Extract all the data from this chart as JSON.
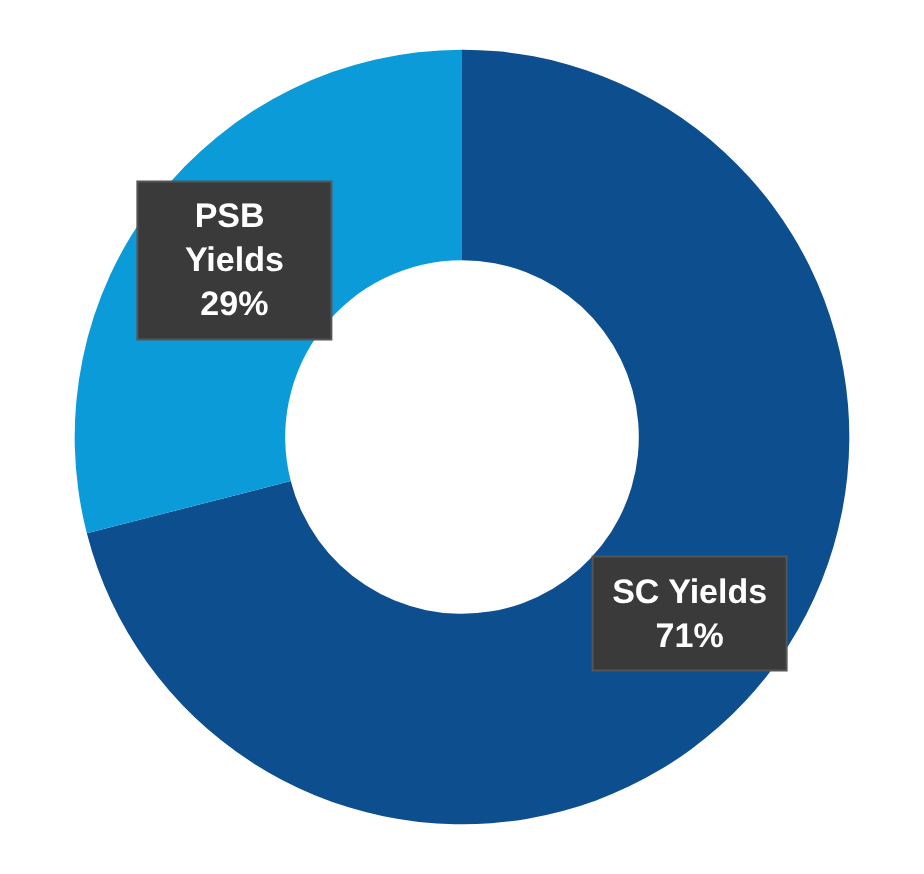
{
  "chart_data": {
    "type": "donut",
    "categories": [
      "SC Yields",
      "PSB Yields"
    ],
    "values": [
      71,
      29
    ],
    "colors": [
      "#0d4f8e",
      "#0a9bd8"
    ],
    "value_labels": [
      "71%",
      "29%"
    ],
    "legend": false
  }
}
